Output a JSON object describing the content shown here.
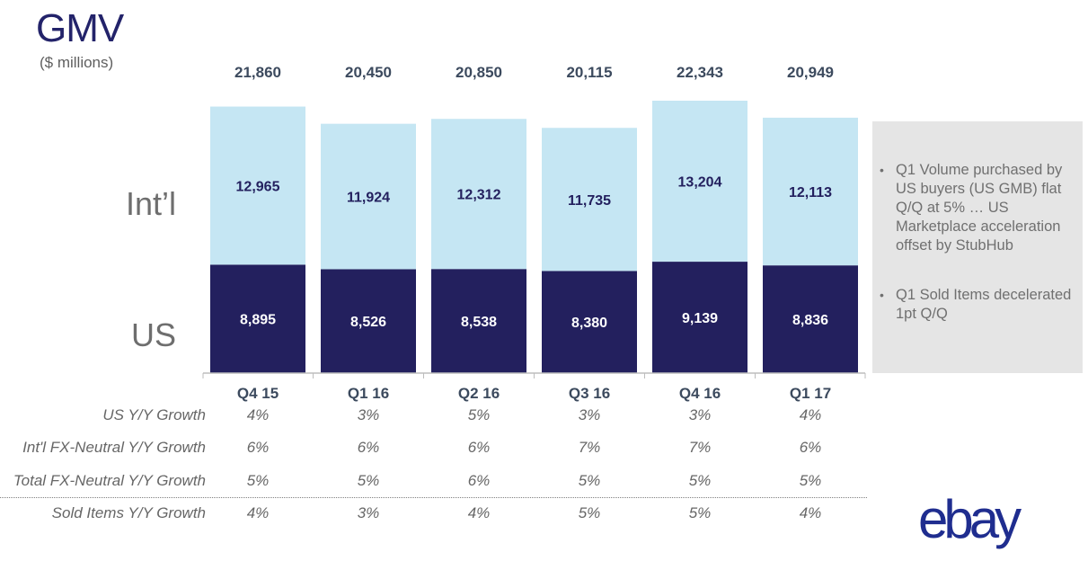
{
  "header": {
    "title": "GMV",
    "subtitle": "($ millions)"
  },
  "labels": {
    "intl": "Int’l",
    "us": "US"
  },
  "chart_data": {
    "type": "bar",
    "stacked": true,
    "categories": [
      "Q4 15",
      "Q1 16",
      "Q2 16",
      "Q3 16",
      "Q4 16",
      "Q1 17"
    ],
    "series": [
      {
        "name": "US",
        "values": [
          8895,
          8526,
          8538,
          8380,
          9139,
          8836
        ],
        "labels": [
          "8,895",
          "8,526",
          "8,538",
          "8,380",
          "9,139",
          "8,836"
        ],
        "color": "#23205e"
      },
      {
        "name": "Int’l",
        "values": [
          12965,
          11924,
          12312,
          11735,
          13204,
          12113
        ],
        "labels": [
          "12,965",
          "11,924",
          "12,312",
          "11,735",
          "13,204",
          "12,113"
        ],
        "color": "#c5e6f3"
      }
    ],
    "totals": [
      21860,
      20450,
      20850,
      20115,
      22343,
      20949
    ],
    "total_labels": [
      "21,860",
      "20,450",
      "20,850",
      "20,115",
      "22,343",
      "20,949"
    ],
    "ylim": [
      0,
      22343
    ]
  },
  "metrics": [
    {
      "label": "US Y/Y Growth",
      "values": [
        "4%",
        "3%",
        "5%",
        "3%",
        "3%",
        "4%"
      ]
    },
    {
      "label": "Int'l FX-Neutral Y/Y Growth",
      "values": [
        "6%",
        "6%",
        "6%",
        "7%",
        "7%",
        "6%"
      ]
    },
    {
      "label": "Total FX-Neutral Y/Y Growth",
      "values": [
        "5%",
        "5%",
        "6%",
        "5%",
        "5%",
        "5%"
      ]
    },
    {
      "label": "Sold Items Y/Y Growth",
      "values": [
        "4%",
        "3%",
        "4%",
        "5%",
        "5%",
        "4%"
      ]
    }
  ],
  "notes": [
    {
      "bullet": "•",
      "text": "Q1 Volume purchased by US buyers (US GMB) flat Q/Q at 5% … US Marketplace acceleration offset by StubHub"
    },
    {
      "bullet": "•",
      "text": "Q1 Sold Items decelerated 1pt Q/Q"
    }
  ],
  "logo": {
    "text": "ebay",
    "colors": [
      "#e53238",
      "#0064d2",
      "#f5af02",
      "#86b817"
    ]
  }
}
